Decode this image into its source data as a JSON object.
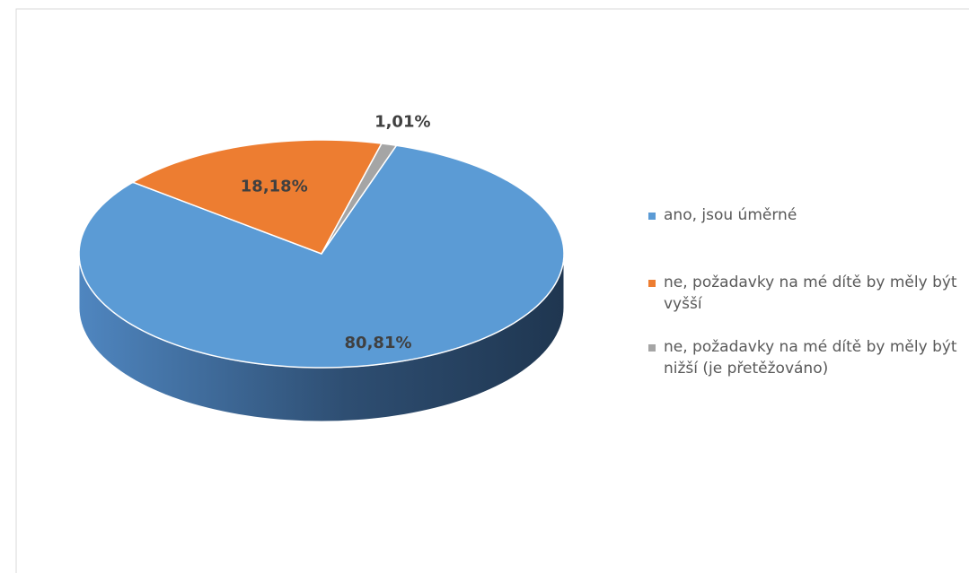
{
  "chart_data": {
    "type": "pie",
    "categories": [
      "ano, jsou úměrné",
      "ne, požadavky na mé dítě by měly být vyšší",
      "ne, požadavky na mé dítě by měly být nižší (je přetěžováno)"
    ],
    "values": [
      80.81,
      18.18,
      1.01
    ],
    "value_labels": [
      "80,81%",
      "18,18%",
      "1,01%"
    ],
    "colors": [
      "#5b9bd5",
      "#ed7d31",
      "#a5a5a5"
    ],
    "legend": "right"
  }
}
